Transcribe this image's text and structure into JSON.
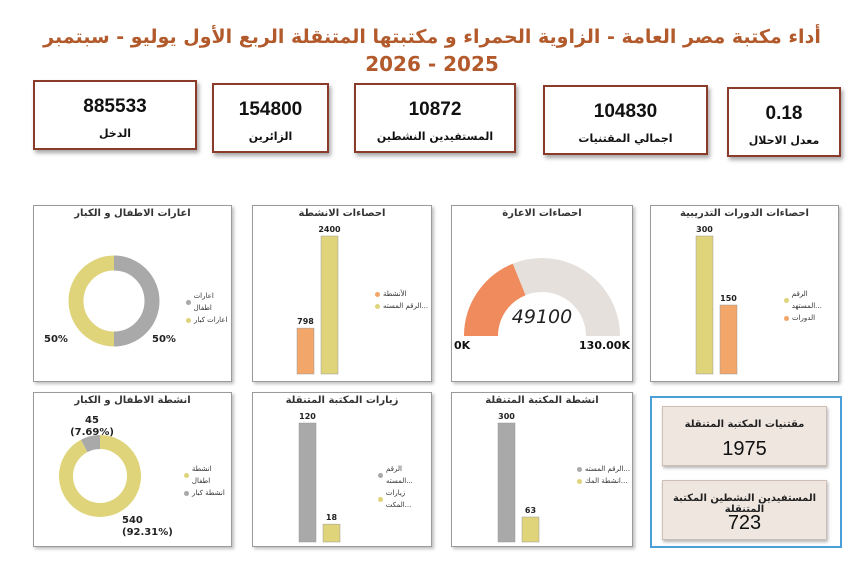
{
  "header": {
    "title_line1": "أداء مكتبة مصر العامة - الزاوية الحمراء و مكتبتها المتنقلة الربع الأول يوليو - سبتمبر",
    "title_line2": "2026 - 2025"
  },
  "kpis": [
    {
      "value": "885533",
      "label": "الدخل"
    },
    {
      "value": "154800",
      "label": "الزائرين"
    },
    {
      "value": "10872",
      "label": "المستفيدين النشطين"
    },
    {
      "value": "104830",
      "label": "اجمالي المقتنيات"
    },
    {
      "value": "0.18",
      "label": "معدل الاحلال"
    }
  ],
  "colors": {
    "orange": "#f2a66a",
    "yellow": "#dfd47a",
    "gray": "#a9a9a9",
    "gauge_fill": "#ef8b5c",
    "gauge_track": "#e5e0db",
    "title": "#b25a2b",
    "kpi_border": "#8a3b2a",
    "side_border": "#4a9fd8"
  },
  "side_cards": [
    {
      "label": "مقتنيات المكتبة المتنقلة",
      "value": "1975"
    },
    {
      "label": "المستفيدين النشطين المكتبة المتنقلة",
      "value": "723"
    }
  ],
  "chart_data": [
    {
      "id": "kids_adults_loans",
      "type": "pie",
      "title": "اعارات الاطفال و الكبار",
      "labels": [
        "اعارات اطفال",
        "اعارات كبار"
      ],
      "values": [
        50,
        50
      ],
      "data_labels": [
        "50%",
        "50%"
      ],
      "colors": [
        "#a9a9a9",
        "#dfd47a"
      ]
    },
    {
      "id": "activities_stats",
      "type": "bar",
      "title": "احصاءات الانشطة",
      "categories": [
        ""
      ],
      "series": [
        {
          "name": "الأنشطة",
          "values": [
            798
          ],
          "color": "#f2a66a"
        },
        {
          "name": "الرقم المسته...",
          "values": [
            2400
          ],
          "color": "#dfd47a"
        }
      ],
      "ylim": [
        0,
        2400
      ]
    },
    {
      "id": "loan_stats",
      "type": "gauge",
      "title": "احصاءات الاعارة",
      "value": 49100,
      "value_label": "49100",
      "min": 0,
      "max": 130000,
      "min_label": "0K",
      "max_label": "130.00K"
    },
    {
      "id": "training_stats",
      "type": "bar",
      "title": "احصاءات الدورات التدريبية",
      "categories": [
        ""
      ],
      "series": [
        {
          "name": "الرقم المستهد...",
          "values": [
            300
          ],
          "color": "#dfd47a"
        },
        {
          "name": "الدورات",
          "values": [
            150
          ],
          "color": "#f2a66a"
        }
      ],
      "ylim": [
        0,
        300
      ]
    },
    {
      "id": "kids_adults_activities",
      "type": "pie",
      "title": "انشطة الاطفال و الكبار",
      "labels": [
        "انشطة اطفال",
        "انشطة كبار"
      ],
      "values": [
        540,
        45
      ],
      "data_labels": [
        "540 (92.31%)",
        "45 (7.69%)"
      ],
      "colors": [
        "#dfd47a",
        "#a9a9a9"
      ]
    },
    {
      "id": "mobile_visits",
      "type": "bar",
      "title": "زيارات المكتبة المتنقلة",
      "categories": [
        ""
      ],
      "series": [
        {
          "name": "الرقم المسته...",
          "values": [
            120
          ],
          "color": "#a9a9a9"
        },
        {
          "name": "زيارات المكت...",
          "values": [
            18
          ],
          "color": "#dfd47a"
        }
      ],
      "ylim": [
        0,
        120
      ]
    },
    {
      "id": "mobile_activities",
      "type": "bar",
      "title": "انشطة المكتبة المتنقلة",
      "categories": [
        ""
      ],
      "series": [
        {
          "name": "الرقم المسته...",
          "values": [
            300
          ],
          "color": "#a9a9a9"
        },
        {
          "name": "انشطة المك...",
          "values": [
            63
          ],
          "color": "#dfd47a"
        }
      ],
      "ylim": [
        0,
        300
      ]
    }
  ]
}
